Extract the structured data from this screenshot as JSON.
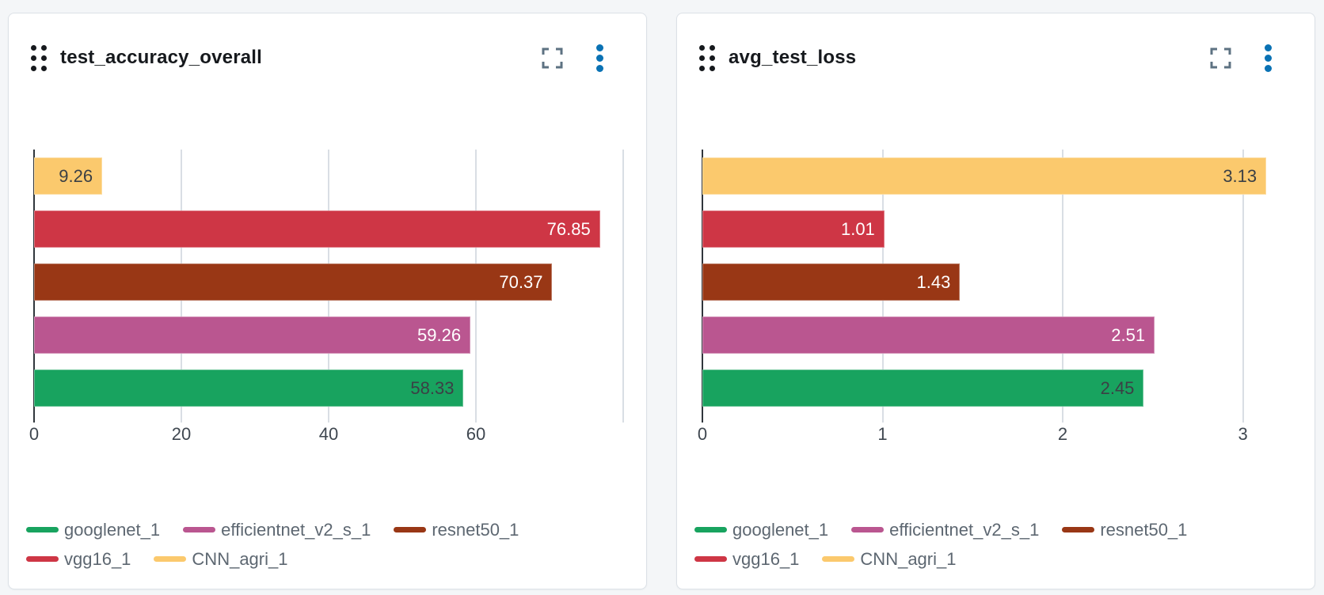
{
  "page": {
    "background": "#f4f6f8"
  },
  "colors": {
    "googlenet_1": "#18a35f",
    "efficientnet_v2_s_1": "#ba5690",
    "resnet50_1": "#993715",
    "vgg16_1": "#ce3645",
    "CNN_agri_1": "#fbc96d",
    "kebab_blue": "#0a72b4",
    "expand_gray": "#5d7282",
    "gridline": "#d9dee4",
    "axis_line": "#30363c",
    "tick_text": "#3f4750",
    "legend_text": "#5d6771"
  },
  "chart_data": [
    {
      "type": "bar",
      "orientation": "horizontal",
      "title": "test_accuracy_overall",
      "categories": [
        "CNN_agri_1",
        "vgg16_1",
        "resnet50_1",
        "efficientnet_v2_s_1",
        "googlenet_1"
      ],
      "values": [
        9.26,
        76.85,
        70.37,
        59.26,
        58.33
      ],
      "value_labels": [
        "9.26",
        "76.85",
        "70.37",
        "59.26",
        "58.33"
      ],
      "bar_colors": [
        "#fbc96d",
        "#ce3645",
        "#993715",
        "#ba5690",
        "#18a35f"
      ],
      "label_colors": [
        "#3b4045",
        "#ffffff",
        "#ffffff",
        "#ffffff",
        "#3b4045"
      ],
      "xlim": [
        0,
        80
      ],
      "xticks": [
        0,
        20,
        40,
        60
      ],
      "xtick_labels": [
        "0",
        "20",
        "40",
        "60"
      ],
      "gridlines": [
        20,
        40,
        60,
        80
      ],
      "grid": "on",
      "legend_position": "bottom",
      "legend_rows": [
        [
          {
            "label": "googlenet_1",
            "color": "#18a35f"
          },
          {
            "label": "efficientnet_v2_s_1",
            "color": "#ba5690"
          },
          {
            "label": "resnet50_1",
            "color": "#993715"
          }
        ],
        [
          {
            "label": "vgg16_1",
            "color": "#ce3645"
          },
          {
            "label": "CNN_agri_1",
            "color": "#fbc96d"
          }
        ]
      ]
    },
    {
      "type": "bar",
      "orientation": "horizontal",
      "title": "avg_test_loss",
      "categories": [
        "CNN_agri_1",
        "vgg16_1",
        "resnet50_1",
        "efficientnet_v2_s_1",
        "googlenet_1"
      ],
      "values": [
        3.13,
        1.01,
        1.43,
        2.51,
        2.45
      ],
      "value_labels": [
        "3.13",
        "1.01",
        "1.43",
        "2.51",
        "2.45"
      ],
      "bar_colors": [
        "#fbc96d",
        "#ce3645",
        "#993715",
        "#ba5690",
        "#18a35f"
      ],
      "label_colors": [
        "#3b4045",
        "#ffffff",
        "#ffffff",
        "#ffffff",
        "#3b4045"
      ],
      "xlim": [
        0,
        3.27
      ],
      "xticks": [
        0,
        1,
        2,
        3
      ],
      "xtick_labels": [
        "0",
        "1",
        "2",
        "3"
      ],
      "gridlines": [
        1,
        2,
        3
      ],
      "grid": "on",
      "legend_position": "bottom",
      "legend_rows": [
        [
          {
            "label": "googlenet_1",
            "color": "#18a35f"
          },
          {
            "label": "efficientnet_v2_s_1",
            "color": "#ba5690"
          },
          {
            "label": "resnet50_1",
            "color": "#993715"
          }
        ],
        [
          {
            "label": "vgg16_1",
            "color": "#ce3645"
          },
          {
            "label": "CNN_agri_1",
            "color": "#fbc96d"
          }
        ]
      ]
    }
  ]
}
